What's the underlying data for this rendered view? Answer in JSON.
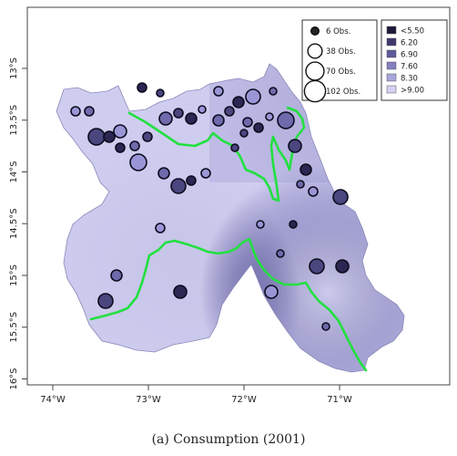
{
  "caption": "(a) Consumption (2001)",
  "map": {
    "x_axis": {
      "ticks": [
        {
          "label": "74°W",
          "lon": -74
        },
        {
          "label": "73°W",
          "lon": -73
        },
        {
          "label": "72°W",
          "lon": -72
        },
        {
          "label": "71°W",
          "lon": -71
        }
      ]
    },
    "y_axis": {
      "ticks": [
        {
          "label": "13°S",
          "lat": -13
        },
        {
          "label": "13.5°S",
          "lat": -13.5
        },
        {
          "label": "14°S",
          "lat": -14
        },
        {
          "label": "14.5°S",
          "lat": -14.5
        },
        {
          "label": "15°S",
          "lat": -15
        },
        {
          "label": "15.5°S",
          "lat": -15.5
        },
        {
          "label": "16°S",
          "lat": -16
        }
      ]
    },
    "size_legend": [
      {
        "label": "6 Obs.",
        "obs": 6
      },
      {
        "label": "38 Obs.",
        "obs": 38
      },
      {
        "label": "70 Obs.",
        "obs": 70
      },
      {
        "label": "102 Obs.",
        "obs": 102
      }
    ],
    "color_legend": [
      {
        "label": "<5.50",
        "color": "#1d1a3a"
      },
      {
        "label": "6.20",
        "color": "#3e3a6e"
      },
      {
        "label": "6.90",
        "color": "#5f5a9a"
      },
      {
        "label": "7.60",
        "color": "#8480c0"
      },
      {
        "label": "8.30",
        "color": "#a9a6dc"
      },
      {
        "label": ">9.00",
        "color": "#d3d2f2"
      }
    ],
    "boundary_color": "#22e040"
  }
}
